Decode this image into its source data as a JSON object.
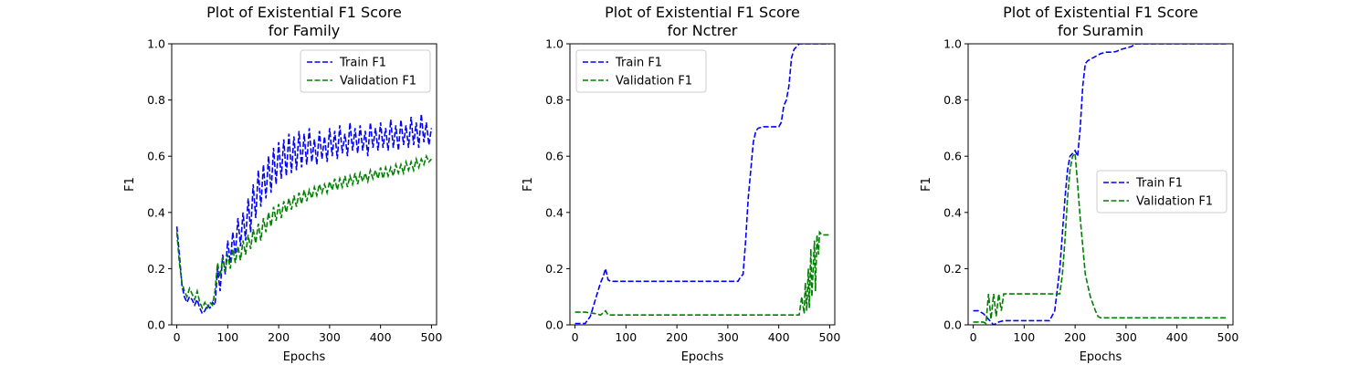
{
  "figure": {
    "background": "#ffffff"
  },
  "chart_data": [
    {
      "type": "line",
      "title": "Plot of Existential F1 Score\nfor Family",
      "xlabel": "Epochs",
      "ylabel": "F1",
      "xlim": [
        -10,
        510
      ],
      "ylim": [
        0.0,
        1.0
      ],
      "xticks": [
        0,
        100,
        200,
        300,
        400,
        500
      ],
      "yticks": [
        0.0,
        0.2,
        0.4,
        0.6,
        0.8,
        1.0
      ],
      "xtick_labels": [
        "0",
        "100",
        "200",
        "300",
        "400",
        "500"
      ],
      "ytick_labels": [
        "0.0",
        "0.2",
        "0.4",
        "0.6",
        "0.8",
        "1.0"
      ],
      "grid": false,
      "legend_position": "top-right",
      "series": [
        {
          "name": "Train F1",
          "color": "#0000ff",
          "dash": "dashed",
          "x": [
            0,
            5,
            10,
            15,
            20,
            25,
            30,
            35,
            40,
            45,
            50,
            55,
            60,
            65,
            70,
            75,
            80,
            85,
            90,
            95,
            100,
            105,
            110,
            115,
            120,
            125,
            130,
            135,
            140,
            145,
            150,
            155,
            160,
            165,
            170,
            175,
            180,
            185,
            190,
            195,
            200,
            205,
            210,
            215,
            220,
            225,
            230,
            235,
            240,
            245,
            250,
            255,
            260,
            265,
            270,
            275,
            280,
            285,
            290,
            295,
            300,
            305,
            310,
            315,
            320,
            325,
            330,
            335,
            340,
            345,
            350,
            355,
            360,
            365,
            370,
            375,
            380,
            385,
            390,
            395,
            400,
            405,
            410,
            415,
            420,
            425,
            430,
            435,
            440,
            445,
            450,
            455,
            460,
            465,
            470,
            475,
            480,
            485,
            490,
            495,
            500
          ],
          "y": [
            0.35,
            0.25,
            0.14,
            0.1,
            0.08,
            0.1,
            0.09,
            0.07,
            0.09,
            0.06,
            0.04,
            0.05,
            0.07,
            0.06,
            0.08,
            0.07,
            0.2,
            0.12,
            0.25,
            0.18,
            0.3,
            0.22,
            0.33,
            0.25,
            0.38,
            0.28,
            0.4,
            0.3,
            0.45,
            0.33,
            0.5,
            0.38,
            0.55,
            0.42,
            0.57,
            0.45,
            0.6,
            0.47,
            0.63,
            0.5,
            0.65,
            0.52,
            0.66,
            0.53,
            0.68,
            0.54,
            0.67,
            0.55,
            0.69,
            0.56,
            0.68,
            0.57,
            0.7,
            0.58,
            0.66,
            0.57,
            0.69,
            0.59,
            0.67,
            0.58,
            0.7,
            0.6,
            0.69,
            0.59,
            0.71,
            0.61,
            0.68,
            0.6,
            0.72,
            0.62,
            0.7,
            0.61,
            0.71,
            0.62,
            0.69,
            0.6,
            0.72,
            0.63,
            0.7,
            0.62,
            0.72,
            0.63,
            0.7,
            0.62,
            0.73,
            0.63,
            0.71,
            0.62,
            0.73,
            0.64,
            0.71,
            0.63,
            0.74,
            0.64,
            0.72,
            0.63,
            0.75,
            0.65,
            0.72,
            0.64,
            0.7
          ]
        },
        {
          "name": "Validation F1",
          "color": "#008000",
          "dash": "dashed",
          "x": [
            0,
            5,
            10,
            15,
            20,
            25,
            30,
            35,
            40,
            45,
            50,
            55,
            60,
            65,
            70,
            75,
            80,
            85,
            90,
            95,
            100,
            105,
            110,
            115,
            120,
            125,
            130,
            135,
            140,
            145,
            150,
            155,
            160,
            165,
            170,
            175,
            180,
            185,
            190,
            195,
            200,
            205,
            210,
            215,
            220,
            225,
            230,
            235,
            240,
            245,
            250,
            255,
            260,
            265,
            270,
            275,
            280,
            285,
            290,
            295,
            300,
            305,
            310,
            315,
            320,
            325,
            330,
            335,
            340,
            345,
            350,
            355,
            360,
            365,
            370,
            375,
            380,
            385,
            390,
            395,
            400,
            405,
            410,
            415,
            420,
            425,
            430,
            435,
            440,
            445,
            450,
            455,
            460,
            465,
            470,
            475,
            480,
            485,
            490,
            495,
            500
          ],
          "y": [
            0.33,
            0.22,
            0.15,
            0.12,
            0.1,
            0.13,
            0.11,
            0.09,
            0.12,
            0.08,
            0.06,
            0.08,
            0.06,
            0.08,
            0.07,
            0.12,
            0.22,
            0.17,
            0.24,
            0.19,
            0.25,
            0.2,
            0.27,
            0.22,
            0.28,
            0.23,
            0.3,
            0.25,
            0.32,
            0.27,
            0.34,
            0.29,
            0.36,
            0.3,
            0.38,
            0.33,
            0.4,
            0.35,
            0.42,
            0.37,
            0.43,
            0.38,
            0.44,
            0.4,
            0.45,
            0.41,
            0.46,
            0.42,
            0.47,
            0.43,
            0.48,
            0.44,
            0.48,
            0.45,
            0.49,
            0.46,
            0.5,
            0.47,
            0.5,
            0.47,
            0.51,
            0.48,
            0.52,
            0.48,
            0.52,
            0.49,
            0.53,
            0.49,
            0.53,
            0.5,
            0.54,
            0.5,
            0.54,
            0.51,
            0.54,
            0.51,
            0.55,
            0.52,
            0.55,
            0.52,
            0.56,
            0.52,
            0.56,
            0.53,
            0.56,
            0.53,
            0.57,
            0.54,
            0.57,
            0.54,
            0.58,
            0.55,
            0.58,
            0.55,
            0.59,
            0.56,
            0.59,
            0.57,
            0.6,
            0.58,
            0.59
          ]
        }
      ]
    },
    {
      "type": "line",
      "title": "Plot of Existential F1 Score\nfor Nctrer",
      "xlabel": "Epochs",
      "ylabel": "F1",
      "xlim": [
        -10,
        510
      ],
      "ylim": [
        0.0,
        1.0
      ],
      "xticks": [
        0,
        100,
        200,
        300,
        400,
        500
      ],
      "yticks": [
        0.0,
        0.2,
        0.4,
        0.6,
        0.8,
        1.0
      ],
      "xtick_labels": [
        "0",
        "100",
        "200",
        "300",
        "400",
        "500"
      ],
      "ytick_labels": [
        "0.0",
        "0.2",
        "0.4",
        "0.6",
        "0.8",
        "1.0"
      ],
      "grid": false,
      "legend_position": "top-left",
      "series": [
        {
          "name": "Train F1",
          "color": "#0000ff",
          "dash": "dashed",
          "x": [
            0,
            20,
            30,
            40,
            50,
            55,
            60,
            65,
            70,
            100,
            150,
            200,
            250,
            300,
            320,
            325,
            330,
            335,
            340,
            345,
            350,
            355,
            360,
            370,
            380,
            390,
            400,
            405,
            410,
            415,
            420,
            425,
            430,
            435,
            440,
            450,
            460,
            480,
            500
          ],
          "y": [
            0.005,
            0.005,
            0.03,
            0.09,
            0.15,
            0.17,
            0.2,
            0.16,
            0.155,
            0.155,
            0.155,
            0.155,
            0.155,
            0.155,
            0.155,
            0.17,
            0.18,
            0.3,
            0.45,
            0.55,
            0.65,
            0.69,
            0.7,
            0.705,
            0.705,
            0.705,
            0.705,
            0.72,
            0.78,
            0.8,
            0.85,
            0.95,
            0.98,
            0.99,
            1.0,
            1.0,
            1.0,
            1.0,
            1.0
          ]
        },
        {
          "name": "Validation F1",
          "color": "#008000",
          "dash": "dashed",
          "x": [
            0,
            20,
            40,
            50,
            60,
            65,
            70,
            100,
            150,
            200,
            250,
            300,
            350,
            400,
            430,
            440,
            445,
            450,
            452,
            455,
            458,
            460,
            463,
            465,
            468,
            470,
            472,
            475,
            478,
            480,
            485,
            490,
            495,
            500
          ],
          "y": [
            0.045,
            0.045,
            0.04,
            0.035,
            0.05,
            0.035,
            0.035,
            0.035,
            0.035,
            0.035,
            0.035,
            0.035,
            0.035,
            0.035,
            0.035,
            0.035,
            0.1,
            0.04,
            0.15,
            0.05,
            0.2,
            0.06,
            0.27,
            0.1,
            0.22,
            0.3,
            0.12,
            0.32,
            0.25,
            0.33,
            0.32,
            0.32,
            0.32,
            0.32
          ]
        }
      ]
    },
    {
      "type": "line",
      "title": "Plot of Existential F1 Score\nfor Suramin",
      "xlabel": "Epochs",
      "ylabel": "F1",
      "xlim": [
        -10,
        510
      ],
      "ylim": [
        0.0,
        1.0
      ],
      "xticks": [
        0,
        100,
        200,
        300,
        400,
        500
      ],
      "yticks": [
        0.0,
        0.2,
        0.4,
        0.6,
        0.8,
        1.0
      ],
      "xtick_labels": [
        "0",
        "100",
        "200",
        "300",
        "400",
        "500"
      ],
      "ytick_labels": [
        "0.0",
        "0.2",
        "0.4",
        "0.6",
        "0.8",
        "1.0"
      ],
      "grid": false,
      "legend_position": "center-right",
      "series": [
        {
          "name": "Train F1",
          "color": "#0000ff",
          "dash": "dashed",
          "x": [
            0,
            10,
            20,
            30,
            35,
            40,
            50,
            60,
            80,
            100,
            150,
            160,
            170,
            180,
            185,
            190,
            195,
            200,
            205,
            210,
            215,
            220,
            225,
            230,
            240,
            250,
            260,
            270,
            280,
            290,
            300,
            310,
            320,
            350,
            400,
            450,
            500
          ],
          "y": [
            0.05,
            0.05,
            0.04,
            0.02,
            0.01,
            0.0,
            0.01,
            0.015,
            0.015,
            0.015,
            0.015,
            0.05,
            0.2,
            0.45,
            0.55,
            0.6,
            0.61,
            0.62,
            0.6,
            0.7,
            0.85,
            0.93,
            0.94,
            0.945,
            0.955,
            0.965,
            0.97,
            0.97,
            0.972,
            0.98,
            0.985,
            0.99,
            1.0,
            1.0,
            1.0,
            1.0,
            1.0
          ]
        },
        {
          "name": "Validation F1",
          "color": "#008000",
          "dash": "dashed",
          "x": [
            0,
            10,
            20,
            25,
            30,
            35,
            40,
            45,
            50,
            55,
            60,
            70,
            80,
            100,
            120,
            150,
            170,
            175,
            180,
            185,
            190,
            195,
            200,
            205,
            210,
            215,
            220,
            230,
            240,
            245,
            250,
            260,
            300,
            350,
            400,
            450,
            500
          ],
          "y": [
            0.01,
            0.01,
            0.01,
            0.005,
            0.11,
            0.02,
            0.11,
            0.03,
            0.11,
            0.05,
            0.11,
            0.11,
            0.11,
            0.11,
            0.11,
            0.11,
            0.11,
            0.18,
            0.3,
            0.45,
            0.55,
            0.6,
            0.61,
            0.5,
            0.38,
            0.28,
            0.18,
            0.1,
            0.05,
            0.03,
            0.025,
            0.025,
            0.025,
            0.025,
            0.025,
            0.025,
            0.025
          ]
        }
      ]
    }
  ]
}
